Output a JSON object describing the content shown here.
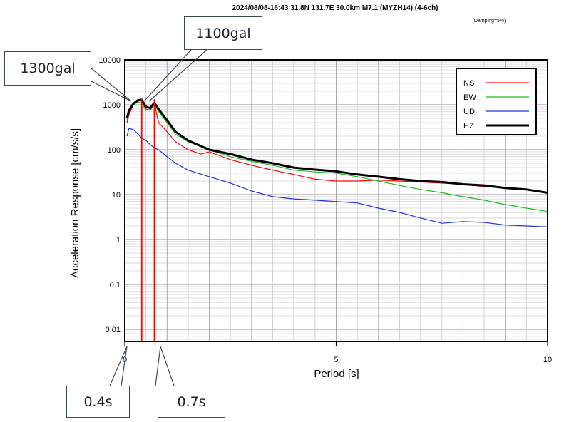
{
  "chart_data": {
    "type": "line",
    "title": "2024/08/08-16:43 31.8N 131.7E 30.0km M7.1 (MYZH14) (4-6ch)",
    "subtitle": "(Damping=5%)",
    "xlabel": "Period [s]",
    "ylabel": "Acceleration Response [cm/s/s]",
    "xlim": [
      0,
      10
    ],
    "ylim": [
      0.005,
      10000
    ],
    "yscale": "log",
    "x_ticks": [
      "0",
      "5",
      "10"
    ],
    "y_ticks": [
      "0.01",
      "0.1",
      "1",
      "10",
      "100",
      "1000",
      "10000"
    ],
    "grid": true,
    "legend_position": "top-right",
    "series": [
      {
        "name": "NS",
        "color": "#ff0000",
        "x": [
          0.05,
          0.1,
          0.2,
          0.3,
          0.4,
          0.5,
          0.6,
          0.7,
          0.8,
          1.0,
          1.2,
          1.5,
          1.8,
          2.0,
          2.5,
          3.0,
          3.5,
          4.0,
          4.5,
          5.0,
          5.5,
          6.0,
          6.5,
          7.0,
          7.5,
          8.0,
          8.5,
          9.0,
          9.5,
          10.0
        ],
        "y": [
          400,
          600,
          1000,
          1200,
          1250,
          800,
          750,
          1050,
          400,
          250,
          150,
          100,
          80,
          90,
          60,
          45,
          35,
          28,
          22,
          20,
          20,
          21,
          20,
          19,
          18,
          17,
          15,
          14,
          13,
          11
        ]
      },
      {
        "name": "EW",
        "color": "#22bb22",
        "x": [
          0.05,
          0.1,
          0.2,
          0.3,
          0.4,
          0.5,
          0.6,
          0.7,
          0.8,
          1.0,
          1.2,
          1.5,
          2.0,
          2.5,
          3.0,
          3.5,
          4.0,
          4.5,
          5.0,
          5.5,
          6.0,
          6.5,
          7.0,
          7.5,
          8.0,
          8.5,
          9.0,
          9.5,
          10.0
        ],
        "y": [
          450,
          700,
          1000,
          1150,
          1100,
          750,
          800,
          1000,
          700,
          400,
          220,
          150,
          100,
          70,
          55,
          45,
          35,
          32,
          30,
          25,
          20,
          16,
          13,
          11,
          9,
          7.5,
          6,
          5,
          4.2
        ]
      },
      {
        "name": "UD",
        "color": "#2233dd",
        "x": [
          0.05,
          0.1,
          0.2,
          0.3,
          0.4,
          0.5,
          0.6,
          0.7,
          0.8,
          1.0,
          1.2,
          1.5,
          2.0,
          2.5,
          3.0,
          3.5,
          4.0,
          4.5,
          5.0,
          5.5,
          6.0,
          6.5,
          7.0,
          7.5,
          8.0,
          8.5,
          9.0,
          9.5,
          10.0
        ],
        "y": [
          200,
          300,
          280,
          230,
          180,
          160,
          130,
          110,
          100,
          70,
          50,
          35,
          25,
          18,
          12,
          9,
          8,
          7.5,
          7,
          6.5,
          5,
          4,
          3,
          2.3,
          2.5,
          2.4,
          2.1,
          2.0,
          1.9
        ]
      },
      {
        "name": "HZ",
        "color": "#000000",
        "x": [
          0.05,
          0.1,
          0.2,
          0.3,
          0.4,
          0.5,
          0.6,
          0.7,
          0.8,
          1.0,
          1.2,
          1.5,
          2.0,
          2.5,
          3.0,
          3.5,
          4.0,
          4.5,
          5.0,
          5.5,
          6.0,
          6.5,
          7.0,
          7.5,
          8.0,
          8.5,
          9.0,
          9.5,
          10.0
        ],
        "y": [
          500,
          750,
          1050,
          1250,
          1300,
          900,
          850,
          1100,
          800,
          450,
          250,
          160,
          100,
          80,
          60,
          50,
          40,
          36,
          33,
          28,
          25,
          22,
          20,
          19,
          17,
          16,
          14,
          13,
          11
        ]
      }
    ],
    "annotations": {
      "peak1_label": "1300gal",
      "peak2_label": "1100gal",
      "period1_label": "0.4s",
      "period2_label": "0.7s",
      "period1_value": 0.4,
      "period2_value": 0.7,
      "line_color": "#ff0000"
    }
  }
}
